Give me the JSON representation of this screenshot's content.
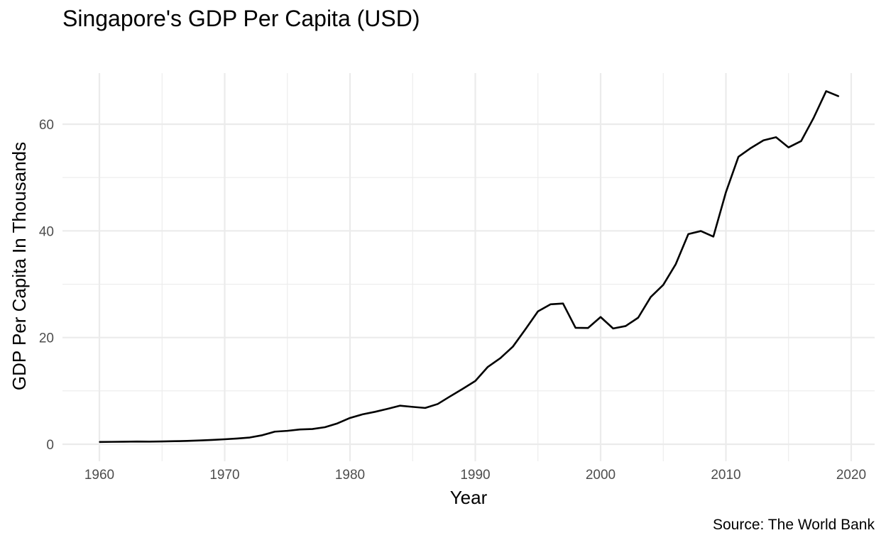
{
  "chart_data": {
    "type": "line",
    "title": "Singapore's GDP Per Capita (USD)",
    "caption": "Source: The World Bank",
    "xlabel": "Year",
    "ylabel": "GDP Per Capita In Thousands",
    "xlim": [
      1960,
      2019
    ],
    "ylim": [
      0,
      66.7
    ],
    "x_ticks": [
      1960,
      1970,
      1980,
      1990,
      2000,
      2010,
      2020
    ],
    "y_ticks": [
      0,
      20,
      40,
      60
    ],
    "grid": true,
    "legend": "none",
    "line_color": "#000000",
    "series": [
      {
        "x": [
          1960,
          1961,
          1962,
          1963,
          1964,
          1965,
          1966,
          1967,
          1968,
          1969,
          1970,
          1971,
          1972,
          1973,
          1974,
          1975,
          1976,
          1977,
          1978,
          1979,
          1980,
          1981,
          1982,
          1983,
          1984,
          1985,
          1986,
          1987,
          1988,
          1989,
          1990,
          1991,
          1992,
          1993,
          1994,
          1995,
          1996,
          1997,
          1998,
          1999,
          2000,
          2001,
          2002,
          2003,
          2004,
          2005,
          2006,
          2007,
          2008,
          2009,
          2010,
          2011,
          2012,
          2013,
          2014,
          2015,
          2016,
          2017,
          2018,
          2019
        ],
        "values": [
          0.43,
          0.45,
          0.47,
          0.51,
          0.49,
          0.52,
          0.57,
          0.62,
          0.71,
          0.81,
          0.93,
          1.07,
          1.26,
          1.69,
          2.36,
          2.51,
          2.77,
          2.85,
          3.19,
          3.91,
          4.93,
          5.6,
          6.08,
          6.63,
          7.23,
          7.0,
          6.8,
          7.54,
          8.99,
          10.39,
          11.86,
          14.5,
          16.14,
          18.3,
          21.55,
          24.91,
          26.23,
          26.38,
          21.83,
          21.8,
          23.85,
          21.7,
          22.16,
          23.73,
          27.6,
          29.87,
          33.77,
          39.4,
          39.97,
          38.93,
          47.24,
          53.89,
          55.55,
          56.97,
          57.56,
          55.65,
          56.83,
          61.18,
          66.19,
          65.23
        ]
      }
    ]
  }
}
